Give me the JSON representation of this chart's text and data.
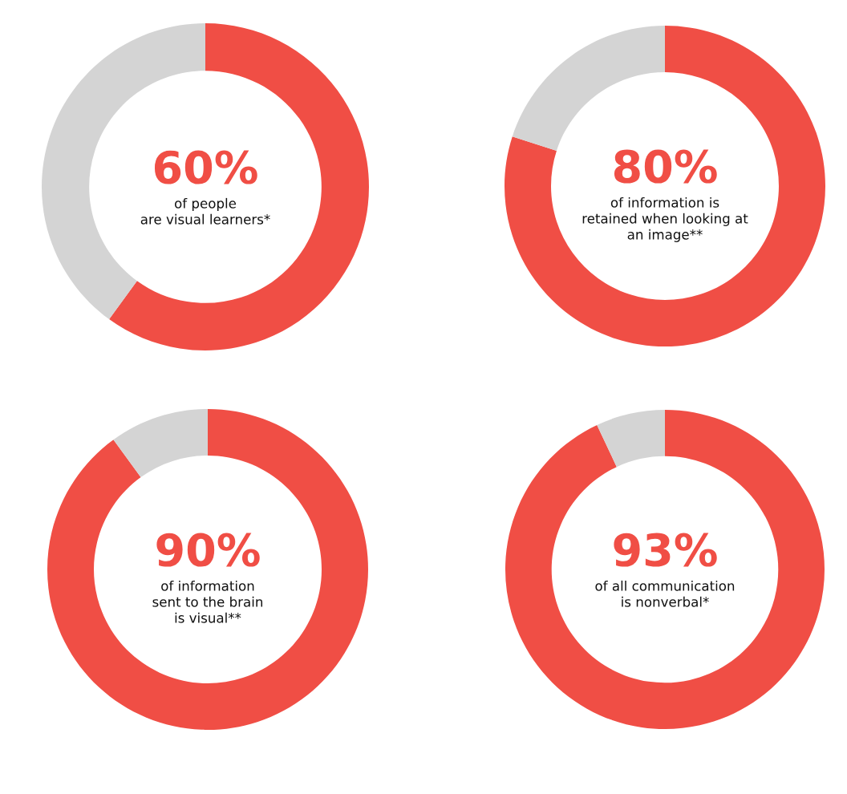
{
  "chart_data": [
    {
      "type": "donut",
      "categories": [
        null,
        null
      ],
      "values": [
        60,
        40
      ],
      "colors": [
        "#f04e45",
        "#d4d4d4"
      ],
      "value_labels": [
        "60%",
        null
      ],
      "annotations": [
        "of people\nare visual learners*"
      ]
    },
    {
      "type": "donut",
      "categories": [
        null,
        null
      ],
      "values": [
        80,
        20
      ],
      "colors": [
        "#f04e45",
        "#d4d4d4"
      ],
      "value_labels": [
        "80%",
        null
      ],
      "annotations": [
        "of information is\nretained when looking at\nan image**"
      ]
    },
    {
      "type": "donut",
      "categories": [
        null,
        null
      ],
      "values": [
        90,
        10
      ],
      "colors": [
        "#f04e45",
        "#d4d4d4"
      ],
      "value_labels": [
        "90%",
        null
      ],
      "annotations": [
        "of information\nsent to the brain\nis visual**"
      ]
    },
    {
      "type": "donut",
      "categories": [
        null,
        null
      ],
      "values": [
        93,
        7
      ],
      "colors": [
        "#f04e45",
        "#d4d4d4"
      ],
      "value_labels": [
        "93%",
        null
      ],
      "annotations": [
        "of all communication\nis nonverbal*"
      ]
    }
  ]
}
